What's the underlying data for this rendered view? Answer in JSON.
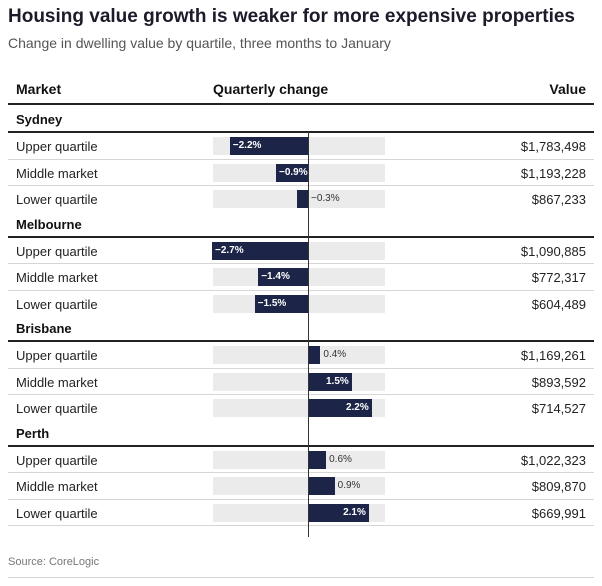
{
  "title": "Housing value growth is weaker for more expensive properties",
  "subtitle": "Change in dwelling value by quartile, three months to January",
  "columns": {
    "market": "Market",
    "change": "Quarterly change",
    "value": "Value"
  },
  "source": "Source: CoreLogic",
  "colors": {
    "bar": "#1c2548",
    "track": "#ebebeb",
    "rule": "#222222"
  },
  "chart_data": {
    "type": "bar",
    "orientation": "horizontal",
    "title": "Housing value growth is weaker for more expensive properties",
    "subtitle": "Change in dwelling value by quartile, three months to January",
    "xlabel": "Quarterly change",
    "unit": "%",
    "xlim": [
      -2.7,
      2.7
    ],
    "groups": [
      {
        "name": "Sydney",
        "rows": [
          {
            "label": "Upper quartile",
            "change": -2.2,
            "change_label": "−2.2%",
            "value": "$1,783,498"
          },
          {
            "label": "Middle market",
            "change": -0.9,
            "change_label": "−0.9%",
            "value": "$1,193,228"
          },
          {
            "label": "Lower quartile",
            "change": -0.3,
            "change_label": "−0.3%",
            "value": "$867,233"
          }
        ]
      },
      {
        "name": "Melbourne",
        "rows": [
          {
            "label": "Upper quartile",
            "change": -2.7,
            "change_label": "−2.7%",
            "value": "$1,090,885"
          },
          {
            "label": "Middle market",
            "change": -1.4,
            "change_label": "−1.4%",
            "value": "$772,317"
          },
          {
            "label": "Lower quartile",
            "change": -1.5,
            "change_label": "−1.5%",
            "value": "$604,489"
          }
        ]
      },
      {
        "name": "Brisbane",
        "rows": [
          {
            "label": "Upper quartile",
            "change": 0.4,
            "change_label": "0.4%",
            "value": "$1,169,261"
          },
          {
            "label": "Middle market",
            "change": 1.5,
            "change_label": "1.5%",
            "value": "$893,592"
          },
          {
            "label": "Lower quartile",
            "change": 2.2,
            "change_label": "2.2%",
            "value": "$714,527"
          }
        ]
      },
      {
        "name": "Perth",
        "rows": [
          {
            "label": "Upper quartile",
            "change": 0.6,
            "change_label": "0.6%",
            "value": "$1,022,323"
          },
          {
            "label": "Middle market",
            "change": 0.9,
            "change_label": "0.9%",
            "value": "$809,870"
          },
          {
            "label": "Lower quartile",
            "change": 2.1,
            "change_label": "2.1%",
            "value": "$669,991"
          }
        ]
      }
    ]
  }
}
